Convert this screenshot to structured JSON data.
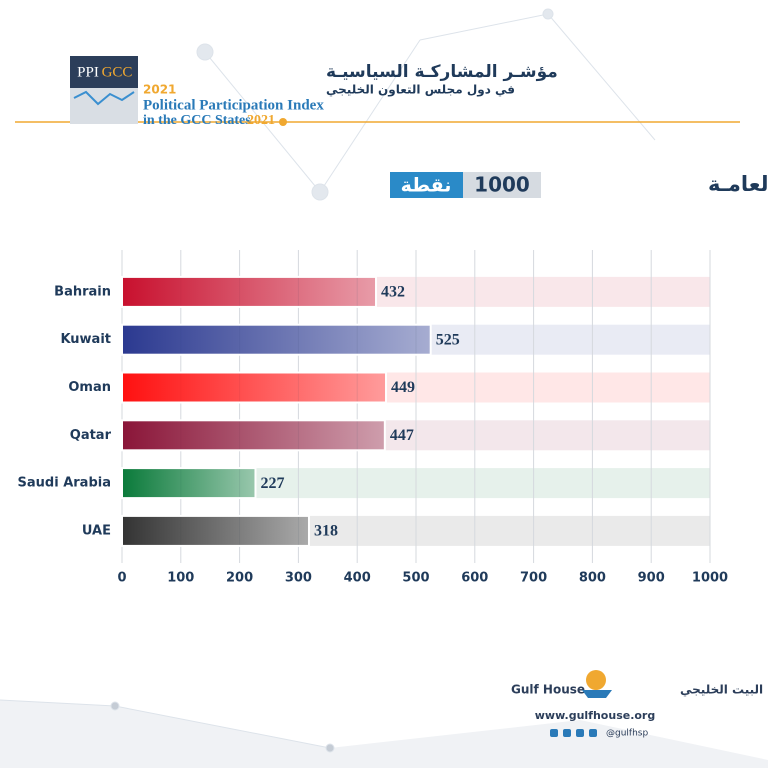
{
  "header": {
    "logo_left": "PPI",
    "logo_right": "GCC",
    "arabic_title": "مؤشـر المشاركـة السياسيـة",
    "arabic_subtitle": "في دول مجلس التعاون الخليجي",
    "arabic_year": "2021",
    "english_title": "Political Participation Index",
    "english_subtitle": "in the GCC States",
    "english_year": "2021"
  },
  "heading": {
    "text": "النتائج العامـة",
    "points": "1000",
    "unit": "نقطة"
  },
  "chart_data": {
    "type": "bar",
    "orientation": "horizontal",
    "categories": [
      "Bahrain",
      "Kuwait",
      "Oman",
      "Qatar",
      "Saudi Arabia",
      "UAE"
    ],
    "values": [
      432,
      525,
      449,
      447,
      227,
      318
    ],
    "colors": [
      "#c8102e",
      "#2b3990",
      "#ff1010",
      "#8a1538",
      "#0a7a3a",
      "#333333"
    ],
    "xlim": [
      0,
      1000
    ],
    "xticks": [
      0,
      100,
      200,
      300,
      400,
      500,
      600,
      700,
      800,
      900,
      1000
    ],
    "grid": true
  },
  "footer": {
    "brand": "Gulf House",
    "brand_arabic": "البيت الخليجي",
    "website": "www.gulfhouse.org",
    "handle": "@gulfhsp"
  }
}
